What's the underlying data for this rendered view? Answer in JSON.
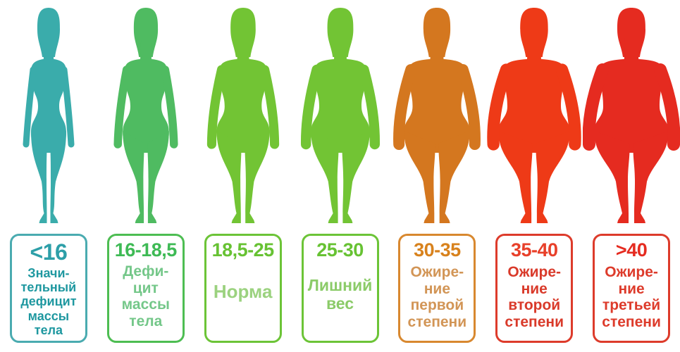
{
  "background": "#ffffff",
  "categories": [
    {
      "range": "<16",
      "label": "Значи-\nтельный\nдефицит\nмассы\nтела",
      "figure_color": "#3aacab",
      "border_color": "#4aabb0",
      "range_color": "#2d9fa8",
      "label_color": "#1f98a0",
      "body_size": 0.0
    },
    {
      "range": "16-18,5",
      "label": "Дефи-\nцит\nмассы\nтела",
      "figure_color": "#4fbb61",
      "border_color": "#4dbd52",
      "range_color": "#3eba55",
      "label_color": "#74c789",
      "body_size": 0.28
    },
    {
      "range": "18,5-25",
      "label": "Норма",
      "figure_color": "#72c434",
      "border_color": "#6cc437",
      "range_color": "#67c233",
      "label_color": "#9bd27f",
      "body_size": 0.45
    },
    {
      "range": "25-30",
      "label": "Лишний\nвес",
      "figure_color": "#72c434",
      "border_color": "#6cc437",
      "range_color": "#67c233",
      "label_color": "#8bcb68",
      "body_size": 0.6
    },
    {
      "range": "30-35",
      "label": "Ожире-\nние\nпервой\nстепени",
      "figure_color": "#d4771f",
      "border_color": "#d8882f",
      "range_color": "#d8821d",
      "label_color": "#d29556",
      "body_size": 0.78
    },
    {
      "range": "35-40",
      "label": "Ожире-\nние\nвторой\nстепени",
      "figure_color": "#ee3a17",
      "border_color": "#dd3b2b",
      "range_color": "#e8402a",
      "label_color": "#d93a2a",
      "body_size": 0.92
    },
    {
      "range": ">40",
      "label": "Ожире-\nние\nтретьей\nстепени",
      "figure_color": "#e52b20",
      "border_color": "#dd3b2b",
      "range_color": "#e52b20",
      "label_color": "#dd3b2b",
      "body_size": 1.0
    }
  ]
}
